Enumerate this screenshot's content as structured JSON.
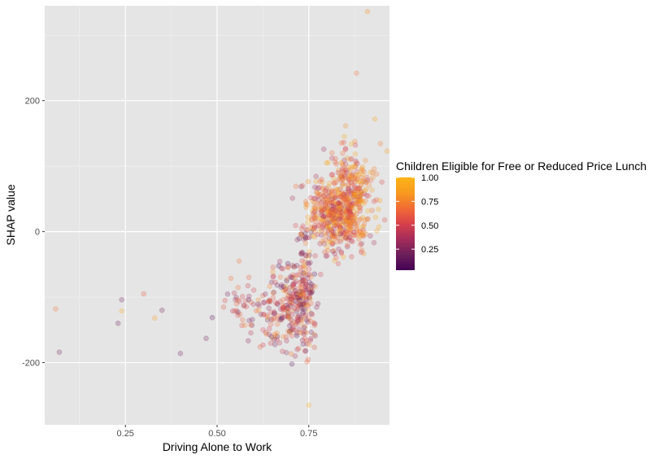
{
  "chart_data": {
    "type": "scatter",
    "title": "",
    "xlabel": "Driving Alone to Work",
    "ylabel": "SHAP value",
    "xlim": [
      0.03,
      0.97
    ],
    "ylim": [
      -295,
      345
    ],
    "x_ticks": [
      0.25,
      0.5,
      0.75
    ],
    "x_tick_labels": [
      "0.25",
      "0.50",
      "0.75"
    ],
    "y_ticks": [
      -200,
      0,
      200
    ],
    "y_tick_labels": [
      "-200",
      "0",
      "200"
    ],
    "grid": true,
    "panel_background": "#e5e5e5",
    "point_alpha": 0.25,
    "legend": {
      "title": "Children Eligible for Free or Reduced Price Lunch",
      "position": "right",
      "type": "colorbar",
      "range": [
        0.03,
        1.0
      ],
      "ticks": [
        0.25,
        0.5,
        0.75,
        1.0
      ],
      "tick_labels": [
        "0.25",
        "0.50",
        "0.75",
        "1.00"
      ],
      "colors": [
        "#440154",
        "#6b1f5a",
        "#a42c5a",
        "#d8404b",
        "#f26b35",
        "#f89a1f",
        "#fcb416"
      ]
    },
    "highlighted_points": [
      {
        "x": 0.06,
        "y": -118,
        "c": 0.7
      },
      {
        "x": 0.07,
        "y": -184,
        "c": 0.2
      },
      {
        "x": 0.23,
        "y": -140,
        "c": 0.2
      },
      {
        "x": 0.24,
        "y": -104,
        "c": 0.2
      },
      {
        "x": 0.24,
        "y": -121,
        "c": 0.95
      },
      {
        "x": 0.3,
        "y": -95,
        "c": 0.6
      },
      {
        "x": 0.33,
        "y": -132,
        "c": 0.85
      },
      {
        "x": 0.35,
        "y": -120,
        "c": 0.2
      },
      {
        "x": 0.4,
        "y": -186,
        "c": 0.2
      },
      {
        "x": 0.47,
        "y": -163,
        "c": 0.2
      },
      {
        "x": 0.91,
        "y": 336,
        "c": 0.8
      },
      {
        "x": 0.88,
        "y": 242,
        "c": 0.7
      },
      {
        "x": 0.93,
        "y": 172,
        "c": 0.9
      },
      {
        "x": 0.75,
        "y": -265,
        "c": 0.95
      },
      {
        "x": 0.56,
        "y": -45,
        "c": 0.7
      }
    ]
  }
}
